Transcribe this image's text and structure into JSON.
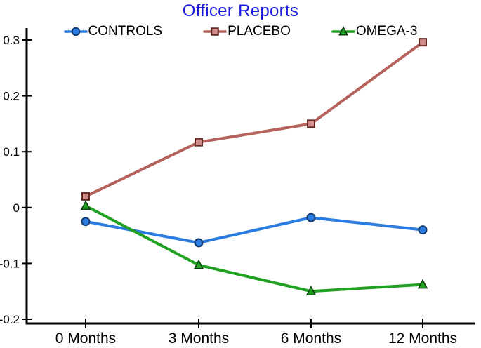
{
  "chart_data": {
    "type": "line",
    "title": "Officer Reports",
    "title_color": "#1c1ce0",
    "categories": [
      "0 Months",
      "3 Months",
      "6 Months",
      "12 Months"
    ],
    "series": [
      {
        "name": "CONTROLS",
        "color": "#2b7ce0",
        "marker": "circle",
        "marker_fill": "#2b7ce0",
        "marker_edge": "#123a6e",
        "values": [
          -0.025,
          -0.063,
          -0.018,
          -0.04
        ]
      },
      {
        "name": "PLACEBO",
        "color": "#b5615c",
        "marker": "square",
        "marker_fill": "#cf8c88",
        "marker_edge": "#642824",
        "values": [
          0.02,
          0.117,
          0.15,
          0.296
        ]
      },
      {
        "name": "OMEGA-3",
        "color": "#21a121",
        "marker": "triangle",
        "marker_fill": "#21a121",
        "marker_edge": "#0d3a0d",
        "values": [
          0.003,
          -0.103,
          -0.15,
          -0.138
        ]
      }
    ],
    "yticks": [
      -0.2,
      -0.1,
      0,
      0.1,
      0.2,
      0.3
    ],
    "ylim": [
      -0.2,
      0.3
    ],
    "xlabel": "",
    "ylabel": "",
    "legend_position": "top",
    "grid": false,
    "axis_color": "#000000",
    "tick_label_color": "#000000"
  }
}
